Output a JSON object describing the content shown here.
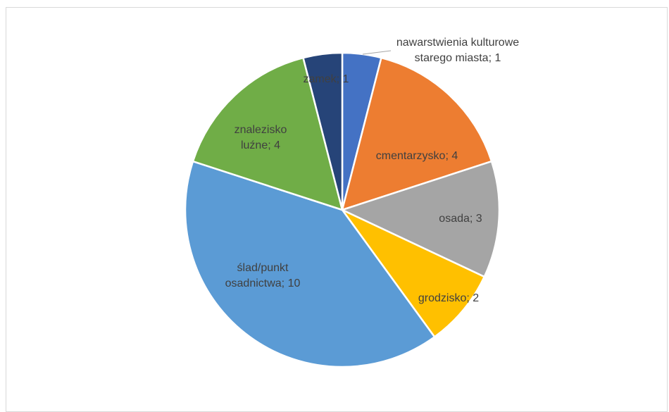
{
  "chart_data": {
    "type": "pie",
    "values": [
      1,
      4,
      3,
      2,
      10,
      4,
      1
    ],
    "value_labels": [
      "nawarstwienia kulturowe starego miasta; 1",
      "cmentarzysko; 4",
      "osada; 3",
      "grodzisko; 2",
      "ślad/punkt osadnictwa; 10",
      "znalezisko luźne; 4",
      "zamek; 1"
    ],
    "colors": [
      "#4472c4",
      "#ed7d31",
      "#a5a5a5",
      "#ffc000",
      "#5b9bd5",
      "#70ad47",
      "#264478"
    ]
  }
}
